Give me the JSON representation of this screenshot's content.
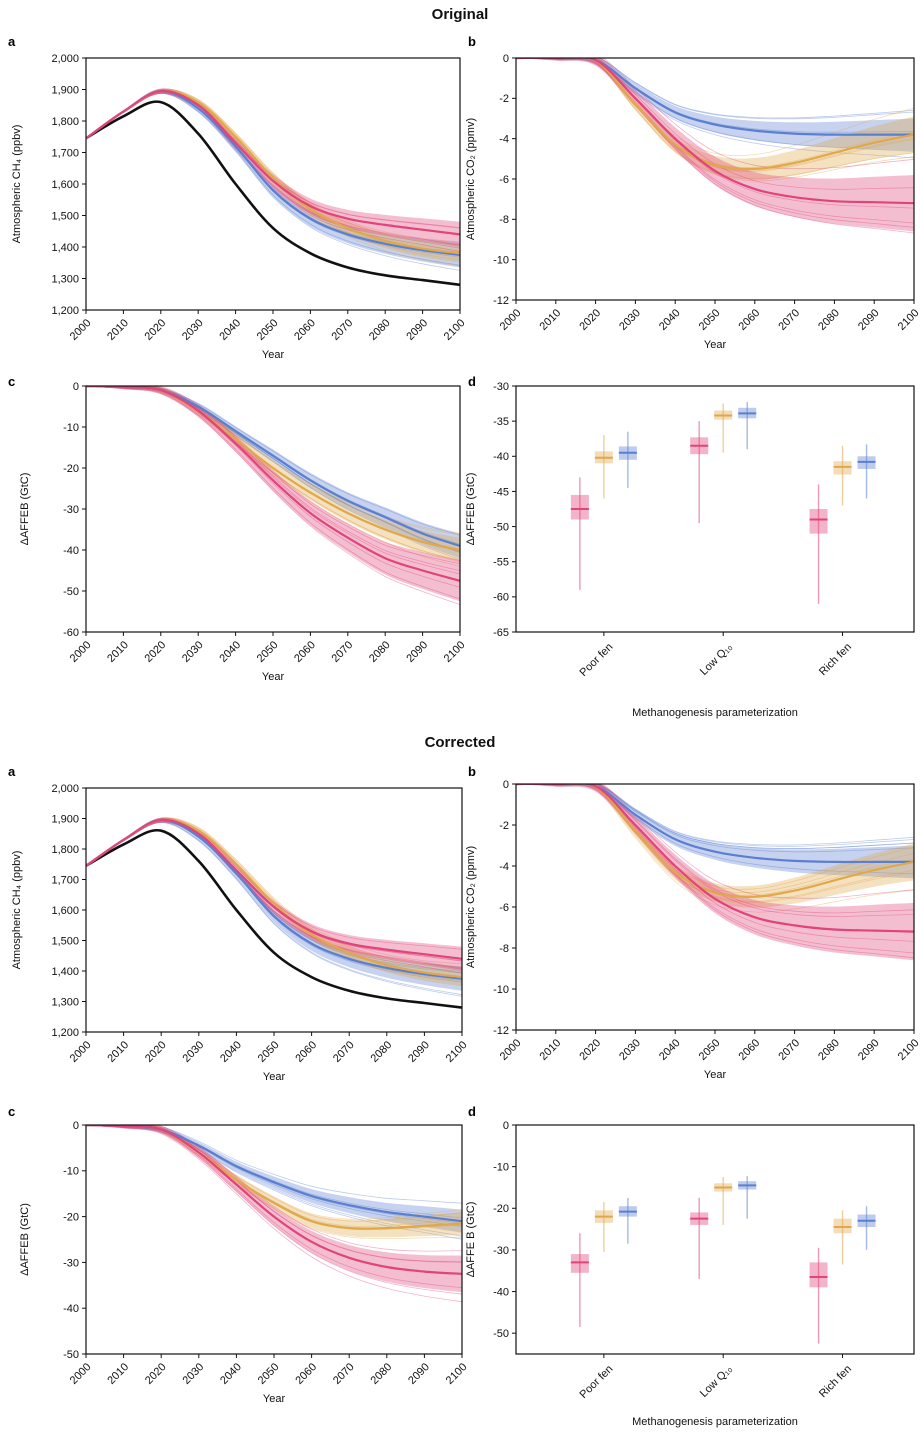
{
  "sections": [
    {
      "title": "Original"
    },
    {
      "title": "Corrected"
    }
  ],
  "colors": {
    "poor_fen": "#e0447a",
    "low_q10": "#e0a84a",
    "rich_fen": "#5b7fd0",
    "baseline": "#111111"
  },
  "chart_data": [
    {
      "id": "orig-a",
      "section": "Original",
      "panel_label": "a",
      "type": "line",
      "xlabel": "Year",
      "ylabel": "Atmospheric CH₄ (ppbv)",
      "xlim": [
        2000,
        2100
      ],
      "ylim": [
        1200,
        2000
      ],
      "xticks": [
        2000,
        2010,
        2020,
        2030,
        2040,
        2050,
        2060,
        2070,
        2080,
        2090,
        2100
      ],
      "yticks": [
        1200,
        1300,
        1400,
        1500,
        1600,
        1700,
        1800,
        1900,
        2000
      ],
      "ytick_labels": [
        "1,200",
        "1,300",
        "1,400",
        "1,500",
        "1,600",
        "1,700",
        "1,800",
        "1,900",
        "2,000"
      ],
      "x": [
        2000,
        2010,
        2020,
        2030,
        2040,
        2050,
        2060,
        2070,
        2080,
        2090,
        2100
      ],
      "series": [
        {
          "color": "#111111",
          "values": [
            1745,
            1815,
            1860,
            1760,
            1600,
            1460,
            1380,
            1335,
            1310,
            1295,
            1280
          ]
        },
        {
          "color": "#5b7fd0",
          "values": [
            1745,
            1830,
            1895,
            1840,
            1720,
            1580,
            1490,
            1440,
            1410,
            1390,
            1375
          ],
          "band": 40
        },
        {
          "color": "#e0a84a",
          "values": [
            1745,
            1830,
            1895,
            1860,
            1750,
            1620,
            1520,
            1460,
            1420,
            1395,
            1380
          ],
          "band": 30
        },
        {
          "color": "#e0447a",
          "values": [
            1745,
            1830,
            1895,
            1850,
            1730,
            1610,
            1530,
            1490,
            1470,
            1455,
            1440
          ],
          "band": 40
        }
      ]
    },
    {
      "id": "orig-b",
      "section": "Original",
      "panel_label": "b",
      "type": "line",
      "xlabel": "Year",
      "ylabel": "Atmospheric CO₂ (ppmv)",
      "xlim": [
        2000,
        2100
      ],
      "ylim": [
        -12,
        0
      ],
      "xticks": [
        2000,
        2010,
        2020,
        2030,
        2040,
        2050,
        2060,
        2070,
        2080,
        2090,
        2100
      ],
      "yticks": [
        -12,
        -10,
        -8,
        -6,
        -4,
        -2,
        0
      ],
      "ytick_labels": [
        "-12",
        "-10",
        "-8",
        "-6",
        "-4",
        "-2",
        "0"
      ],
      "x": [
        2000,
        2010,
        2020,
        2030,
        2040,
        2050,
        2060,
        2070,
        2080,
        2090,
        2100
      ],
      "series": [
        {
          "color": "#5b7fd0",
          "values": [
            0,
            0,
            -0.1,
            -1.5,
            -2.7,
            -3.3,
            -3.6,
            -3.75,
            -3.8,
            -3.8,
            -3.8
          ],
          "band": 0.8
        },
        {
          "color": "#e0a84a",
          "values": [
            0,
            0,
            -0.1,
            -2.3,
            -4.3,
            -5.3,
            -5.5,
            -5.2,
            -4.7,
            -4.2,
            -3.8
          ],
          "band": 0.9
        },
        {
          "color": "#e0447a",
          "values": [
            0,
            0,
            -0.1,
            -2.0,
            -4.0,
            -5.6,
            -6.5,
            -6.9,
            -7.1,
            -7.15,
            -7.2
          ],
          "band": 1.4
        }
      ]
    },
    {
      "id": "orig-c",
      "section": "Original",
      "panel_label": "c",
      "type": "line",
      "xlabel": "Year",
      "ylabel": "ΔAFFEB (GtC)",
      "xlim": [
        2000,
        2100
      ],
      "ylim": [
        -60,
        0
      ],
      "xticks": [
        2000,
        2010,
        2020,
        2030,
        2040,
        2050,
        2060,
        2070,
        2080,
        2090,
        2100
      ],
      "yticks": [
        -60,
        -50,
        -40,
        -30,
        -20,
        -10,
        0
      ],
      "ytick_labels": [
        "-60",
        "-50",
        "-40",
        "-30",
        "-20",
        "-10",
        "0"
      ],
      "x": [
        2000,
        2010,
        2020,
        2030,
        2040,
        2050,
        2060,
        2070,
        2080,
        2090,
        2100
      ],
      "series": [
        {
          "color": "#5b7fd0",
          "values": [
            0,
            -0.3,
            -1,
            -5,
            -11,
            -17,
            -23,
            -28,
            -32,
            -36,
            -39
          ],
          "band": 3
        },
        {
          "color": "#e0a84a",
          "values": [
            0,
            -0.3,
            -1,
            -6,
            -13,
            -20,
            -26,
            -31,
            -35,
            -38,
            -40
          ],
          "band": 3
        },
        {
          "color": "#e0447a",
          "values": [
            0,
            -0.3,
            -1,
            -6,
            -14,
            -23,
            -31,
            -37,
            -42,
            -45,
            -47.5
          ],
          "band": 5
        }
      ]
    },
    {
      "id": "orig-d",
      "section": "Original",
      "panel_label": "d",
      "type": "box",
      "xlabel": "Methanogenesis parameterization",
      "ylabel": "ΔAFFEB (GtC)",
      "ylim": [
        -65,
        -30
      ],
      "yticks": [
        -65,
        -60,
        -55,
        -50,
        -45,
        -40,
        -35,
        -30
      ],
      "ytick_labels": [
        "-65",
        "-60",
        "-55",
        "-50",
        "-45",
        "-40",
        "-35",
        "-30"
      ],
      "categories": [
        "Poor fen",
        "Low Q₁₀",
        "Rich fen"
      ],
      "boxes": [
        {
          "group": 0,
          "color": "#e0447a",
          "min": -59,
          "q1": -49,
          "median": -47.5,
          "q3": -45.5,
          "max": -43
        },
        {
          "group": 0,
          "color": "#e0a84a",
          "min": -46,
          "q1": -41,
          "median": -40.2,
          "q3": -39.3,
          "max": -37
        },
        {
          "group": 0,
          "color": "#5b7fd0",
          "min": -44.5,
          "q1": -40.5,
          "median": -39.5,
          "q3": -38.6,
          "max": -36.5
        },
        {
          "group": 1,
          "color": "#e0447a",
          "min": -49.5,
          "q1": -39.7,
          "median": -38.5,
          "q3": -37.3,
          "max": -35
        },
        {
          "group": 1,
          "color": "#e0a84a",
          "min": -39.5,
          "q1": -34.8,
          "median": -34.2,
          "q3": -33.5,
          "max": -32.5
        },
        {
          "group": 1,
          "color": "#5b7fd0",
          "min": -39,
          "q1": -34.6,
          "median": -33.9,
          "q3": -33.1,
          "max": -32.3
        },
        {
          "group": 2,
          "color": "#e0447a",
          "min": -61,
          "q1": -51,
          "median": -49,
          "q3": -47.5,
          "max": -44
        },
        {
          "group": 2,
          "color": "#e0a84a",
          "min": -47,
          "q1": -42.6,
          "median": -41.5,
          "q3": -40.7,
          "max": -38.5
        },
        {
          "group": 2,
          "color": "#5b7fd0",
          "min": -46,
          "q1": -41.8,
          "median": -40.8,
          "q3": -40,
          "max": -38.3
        }
      ]
    },
    {
      "id": "corr-a",
      "section": "Corrected",
      "panel_label": "a",
      "type": "line",
      "xlabel": "Year",
      "ylabel": "Atmospheric CH₄ (ppbv)",
      "xlim": [
        2000,
        2100
      ],
      "ylim": [
        1200,
        2000
      ],
      "xticks": [
        2000,
        2010,
        2020,
        2030,
        2040,
        2050,
        2060,
        2070,
        2080,
        2090,
        2100
      ],
      "yticks": [
        1200,
        1300,
        1400,
        1500,
        1600,
        1700,
        1800,
        1900,
        2000
      ],
      "ytick_labels": [
        "1,200",
        "1,300",
        "1,400",
        "1,500",
        "1,600",
        "1,700",
        "1,800",
        "1,900",
        "2,000"
      ],
      "x": [
        2000,
        2010,
        2020,
        2030,
        2040,
        2050,
        2060,
        2070,
        2080,
        2090,
        2100
      ],
      "series": [
        {
          "color": "#111111",
          "values": [
            1745,
            1815,
            1860,
            1760,
            1600,
            1460,
            1380,
            1335,
            1310,
            1295,
            1280
          ]
        },
        {
          "color": "#5b7fd0",
          "values": [
            1745,
            1830,
            1895,
            1840,
            1720,
            1580,
            1490,
            1440,
            1410,
            1390,
            1375
          ],
          "band": 40
        },
        {
          "color": "#e0a84a",
          "values": [
            1745,
            1830,
            1895,
            1860,
            1750,
            1620,
            1520,
            1460,
            1420,
            1395,
            1380
          ],
          "band": 30
        },
        {
          "color": "#e0447a",
          "values": [
            1745,
            1830,
            1895,
            1850,
            1730,
            1610,
            1530,
            1490,
            1470,
            1455,
            1440
          ],
          "band": 40
        }
      ]
    },
    {
      "id": "corr-b",
      "section": "Corrected",
      "panel_label": "b",
      "type": "line",
      "xlabel": "Year",
      "ylabel": "Atmospheric CO₂ (ppmv)",
      "xlim": [
        2000,
        2100
      ],
      "ylim": [
        -12,
        0
      ],
      "xticks": [
        2000,
        2010,
        2020,
        2030,
        2040,
        2050,
        2060,
        2070,
        2080,
        2090,
        2100
      ],
      "yticks": [
        -12,
        -10,
        -8,
        -6,
        -4,
        -2,
        0
      ],
      "ytick_labels": [
        "-12",
        "-10",
        "-8",
        "-6",
        "-4",
        "-2",
        "0"
      ],
      "x": [
        2000,
        2010,
        2020,
        2030,
        2040,
        2050,
        2060,
        2070,
        2080,
        2090,
        2100
      ],
      "series": [
        {
          "color": "#5b7fd0",
          "values": [
            0,
            0,
            -0.1,
            -1.5,
            -2.7,
            -3.3,
            -3.6,
            -3.75,
            -3.8,
            -3.8,
            -3.8
          ],
          "band": 0.8
        },
        {
          "color": "#e0a84a",
          "values": [
            0,
            0,
            -0.1,
            -2.3,
            -4.3,
            -5.3,
            -5.5,
            -5.2,
            -4.7,
            -4.2,
            -3.8
          ],
          "band": 0.9
        },
        {
          "color": "#e0447a",
          "values": [
            0,
            0,
            -0.1,
            -2.0,
            -4.0,
            -5.6,
            -6.5,
            -6.9,
            -7.1,
            -7.15,
            -7.2
          ],
          "band": 1.4
        }
      ]
    },
    {
      "id": "corr-c",
      "section": "Corrected",
      "panel_label": "c",
      "type": "line",
      "xlabel": "Year",
      "ylabel": "ΔAFFEB (GtC)",
      "xlim": [
        2000,
        2100
      ],
      "ylim": [
        -50,
        0
      ],
      "xticks": [
        2000,
        2010,
        2020,
        2030,
        2040,
        2050,
        2060,
        2070,
        2080,
        2090,
        2100
      ],
      "yticks": [
        -50,
        -40,
        -30,
        -20,
        -10,
        0
      ],
      "ytick_labels": [
        "-50",
        "-40",
        "-30",
        "-20",
        "-10",
        "0"
      ],
      "x": [
        2000,
        2010,
        2020,
        2030,
        2040,
        2050,
        2060,
        2070,
        2080,
        2090,
        2100
      ],
      "series": [
        {
          "color": "#5b7fd0",
          "values": [
            0,
            -0.3,
            -1,
            -4.5,
            -9,
            -12.5,
            -15.5,
            -17.5,
            -19,
            -20,
            -21
          ],
          "band": 2.5
        },
        {
          "color": "#e0a84a",
          "values": [
            0,
            -0.3,
            -1,
            -6,
            -12,
            -17,
            -21,
            -22.5,
            -22.5,
            -22,
            -21.5
          ],
          "band": 2.5
        },
        {
          "color": "#e0447a",
          "values": [
            0,
            -0.3,
            -1,
            -6,
            -13,
            -20,
            -25.5,
            -29,
            -31,
            -32,
            -32.5
          ],
          "band": 4
        }
      ]
    },
    {
      "id": "corr-d",
      "section": "Corrected",
      "panel_label": "d",
      "type": "box",
      "xlabel": "Methanogenesis parameterization",
      "ylabel": "ΔAFFE B (GtC)",
      "ylim": [
        -55,
        0
      ],
      "yticks": [
        -50,
        -40,
        -30,
        -20,
        -10,
        0
      ],
      "ytick_labels": [
        "-50",
        "-40",
        "-30",
        "-20",
        "-10",
        "0"
      ],
      "categories": [
        "Poor fen",
        "Low Q₁₀",
        "Rich fen"
      ],
      "boxes": [
        {
          "group": 0,
          "color": "#e0447a",
          "min": -48.5,
          "q1": -35.5,
          "median": -33,
          "q3": -31,
          "max": -26
        },
        {
          "group": 0,
          "color": "#e0a84a",
          "min": -30.5,
          "q1": -23.5,
          "median": -22,
          "q3": -20.5,
          "max": -18.5
        },
        {
          "group": 0,
          "color": "#5b7fd0",
          "min": -28.5,
          "q1": -22,
          "median": -20.8,
          "q3": -19.5,
          "max": -17.5
        },
        {
          "group": 1,
          "color": "#e0447a",
          "min": -37,
          "q1": -24,
          "median": -22.5,
          "q3": -21,
          "max": -17.5
        },
        {
          "group": 1,
          "color": "#e0a84a",
          "min": -24,
          "q1": -16,
          "median": -15,
          "q3": -14,
          "max": -12.5
        },
        {
          "group": 1,
          "color": "#5b7fd0",
          "min": -22.5,
          "q1": -15.5,
          "median": -14.5,
          "q3": -13.5,
          "max": -12.3
        },
        {
          "group": 2,
          "color": "#e0447a",
          "min": -52.5,
          "q1": -39,
          "median": -36.5,
          "q3": -33,
          "max": -29.5
        },
        {
          "group": 2,
          "color": "#e0a84a",
          "min": -33.5,
          "q1": -26,
          "median": -24.5,
          "q3": -22.5,
          "max": -20.5
        },
        {
          "group": 2,
          "color": "#5b7fd0",
          "min": -30,
          "q1": -24.5,
          "median": -23,
          "q3": -21.5,
          "max": -19.5
        }
      ]
    }
  ]
}
